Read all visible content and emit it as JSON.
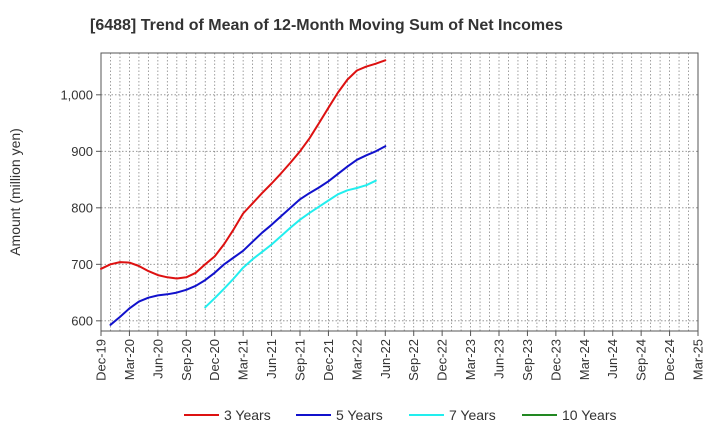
{
  "chart_data": {
    "type": "line",
    "title": "[6488]  Trend of Mean of 12-Month Moving Sum of Net Incomes",
    "xlabel": "",
    "ylabel": "Amount (million yen)",
    "x_labels": [
      "Dec-19",
      "Mar-20",
      "Jun-20",
      "Sep-20",
      "Dec-20",
      "Mar-21",
      "Jun-21",
      "Sep-21",
      "Dec-21",
      "Mar-22",
      "Jun-22",
      "Sep-22",
      "Dec-22",
      "Mar-23",
      "Jun-23",
      "Sep-23",
      "Dec-23",
      "Mar-24",
      "Jun-24",
      "Sep-24",
      "Dec-24",
      "Mar-25"
    ],
    "y_ticks": [
      600,
      700,
      800,
      900,
      1000
    ],
    "y_tick_labels": [
      "600",
      "700",
      "800",
      "900",
      "1,000"
    ],
    "ylim": [
      582,
      1074
    ],
    "grid": true,
    "legend_position": "bottom",
    "series": [
      {
        "name": "3 Years",
        "color": "#dd1111",
        "x_start": 0,
        "values": [
          692,
          700,
          704,
          703,
          697,
          688,
          681,
          677,
          675,
          677,
          685,
          700,
          714,
          736,
          762,
          790,
          808,
          826,
          843,
          861,
          880,
          900,
          923,
          950,
          977,
          1004,
          1027,
          1043,
          1050,
          1055,
          1061
        ]
      },
      {
        "name": "5 Years",
        "color": "#1111cc",
        "x_start": 1,
        "values": [
          593,
          607,
          622,
          634,
          641,
          645,
          647,
          650,
          655,
          662,
          672,
          685,
          700,
          712,
          724,
          740,
          756,
          770,
          785,
          800,
          815,
          826,
          836,
          847,
          860,
          873,
          885,
          893,
          900,
          909
        ]
      },
      {
        "name": "7 Years",
        "color": "#22eeee",
        "x_start": 11,
        "values": [
          624,
          640,
          657,
          675,
          694,
          709,
          722,
          735,
          750,
          765,
          779,
          791,
          802,
          813,
          824,
          831,
          835,
          840,
          848
        ]
      },
      {
        "name": "10 Years",
        "color": "#228822",
        "x_start": 0,
        "values": []
      }
    ]
  }
}
